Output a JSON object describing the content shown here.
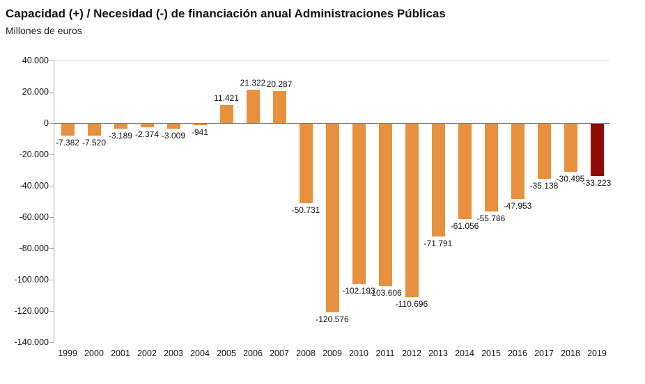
{
  "header": {
    "title": "Capacidad (+) / Necesidad (-) de financiación anual Administraciones Públicas",
    "subtitle": "Millones de euros"
  },
  "chart_data": {
    "type": "bar",
    "title": "Capacidad (+) / Necesidad (-) de financiación anual Administraciones Públicas",
    "ylabel": "Millones de euros",
    "xlabel": "",
    "categories": [
      "1999",
      "2000",
      "2001",
      "2002",
      "2003",
      "2004",
      "2005",
      "2006",
      "2007",
      "2008",
      "2009",
      "2010",
      "2011",
      "2012",
      "2013",
      "2014",
      "2015",
      "2016",
      "2017",
      "2018",
      "2019"
    ],
    "values": [
      -7382,
      -7520,
      -3189,
      -2374,
      -3009,
      -941,
      11421,
      21322,
      20287,
      -50731,
      -120576,
      -102193,
      -103606,
      -110696,
      -71791,
      -61056,
      -55786,
      -47953,
      -35138,
      -30495,
      -33223
    ],
    "labels": [
      "-7.382",
      "-7.520",
      "-3.189",
      "-2.374",
      "-3.009",
      "-941",
      "11.421",
      "21.322",
      "20.287",
      "-50.731",
      "-120.576",
      "-102.193",
      "-103.606",
      "-110.696",
      "-71.791",
      "-61.056",
      "-55.786",
      "-47.953",
      "-35.138",
      "-30.495",
      "-33.223"
    ],
    "ylim": [
      -140000,
      40000
    ],
    "y_ticks": [
      "40.000",
      "20.000",
      "0",
      "-20.000",
      "-40.000",
      "-60.000",
      "-80.000",
      "-100.000",
      "-120.000",
      "-140.000"
    ],
    "y_tick_values": [
      40000,
      20000,
      0,
      -20000,
      -40000,
      -60000,
      -80000,
      -100000,
      -120000,
      -140000
    ],
    "bar_color": "#E7913E",
    "highlight_color": "#8C0D04",
    "highlight_index": 20,
    "grid": "off",
    "legend": "none"
  }
}
